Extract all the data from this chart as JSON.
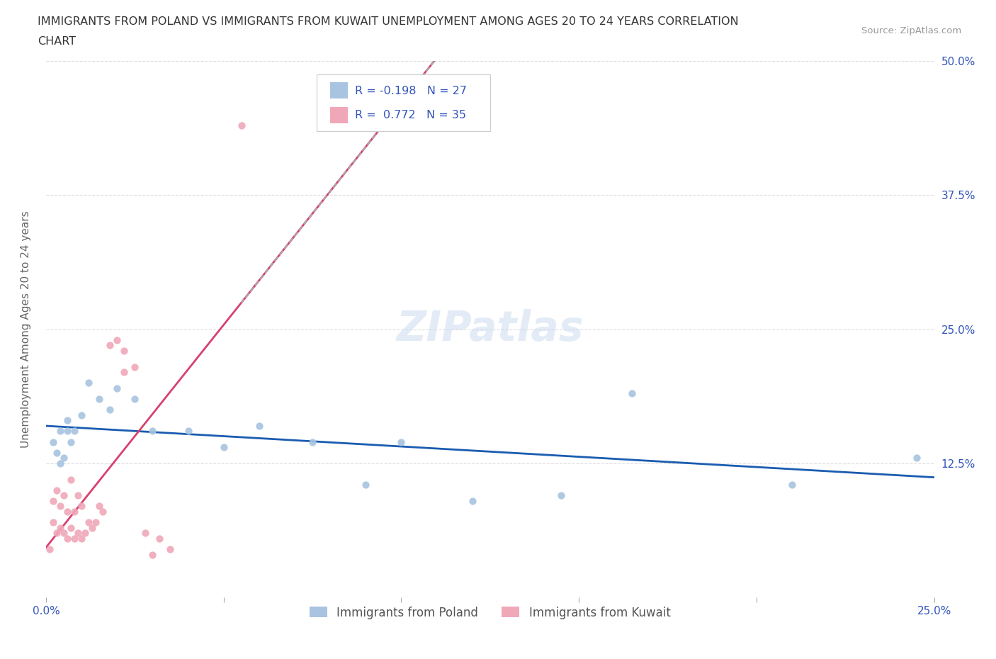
{
  "title_line1": "IMMIGRANTS FROM POLAND VS IMMIGRANTS FROM KUWAIT UNEMPLOYMENT AMONG AGES 20 TO 24 YEARS CORRELATION",
  "title_line2": "CHART",
  "source": "Source: ZipAtlas.com",
  "ylabel": "Unemployment Among Ages 20 to 24 years",
  "xlabel_poland": "Immigrants from Poland",
  "xlabel_kuwait": "Immigrants from Kuwait",
  "xlim": [
    0.0,
    0.25
  ],
  "ylim": [
    0.0,
    0.5
  ],
  "poland_color": "#a8c4e0",
  "kuwait_color": "#f0a8b8",
  "poland_line_color": "#1a5cb0",
  "kuwait_line_color": "#d84070",
  "R_poland": -0.198,
  "N_poland": 27,
  "R_kuwait": 0.772,
  "N_kuwait": 35,
  "legend_text_color": "#3355bb",
  "background_color": "#ffffff",
  "grid_color": "#dddddd",
  "poland_x": [
    0.002,
    0.003,
    0.004,
    0.004,
    0.005,
    0.006,
    0.006,
    0.007,
    0.008,
    0.01,
    0.012,
    0.015,
    0.018,
    0.02,
    0.025,
    0.03,
    0.04,
    0.05,
    0.06,
    0.075,
    0.09,
    0.1,
    0.12,
    0.145,
    0.165,
    0.21,
    0.245
  ],
  "poland_y": [
    0.145,
    0.135,
    0.155,
    0.125,
    0.13,
    0.155,
    0.165,
    0.145,
    0.155,
    0.17,
    0.2,
    0.185,
    0.175,
    0.195,
    0.185,
    0.155,
    0.155,
    0.14,
    0.16,
    0.145,
    0.105,
    0.145,
    0.09,
    0.095,
    0.19,
    0.105,
    0.13
  ],
  "kuwait_x": [
    0.001,
    0.002,
    0.002,
    0.003,
    0.003,
    0.004,
    0.004,
    0.005,
    0.005,
    0.006,
    0.006,
    0.007,
    0.007,
    0.008,
    0.008,
    0.009,
    0.009,
    0.01,
    0.01,
    0.011,
    0.012,
    0.013,
    0.014,
    0.015,
    0.016,
    0.018,
    0.02,
    0.022,
    0.022,
    0.025,
    0.028,
    0.03,
    0.032,
    0.035,
    0.055
  ],
  "kuwait_y": [
    0.045,
    0.07,
    0.09,
    0.06,
    0.1,
    0.065,
    0.085,
    0.06,
    0.095,
    0.055,
    0.08,
    0.065,
    0.11,
    0.055,
    0.08,
    0.06,
    0.095,
    0.055,
    0.085,
    0.06,
    0.07,
    0.065,
    0.07,
    0.085,
    0.08,
    0.235,
    0.24,
    0.21,
    0.23,
    0.215,
    0.06,
    0.04,
    0.055,
    0.045,
    0.44
  ]
}
